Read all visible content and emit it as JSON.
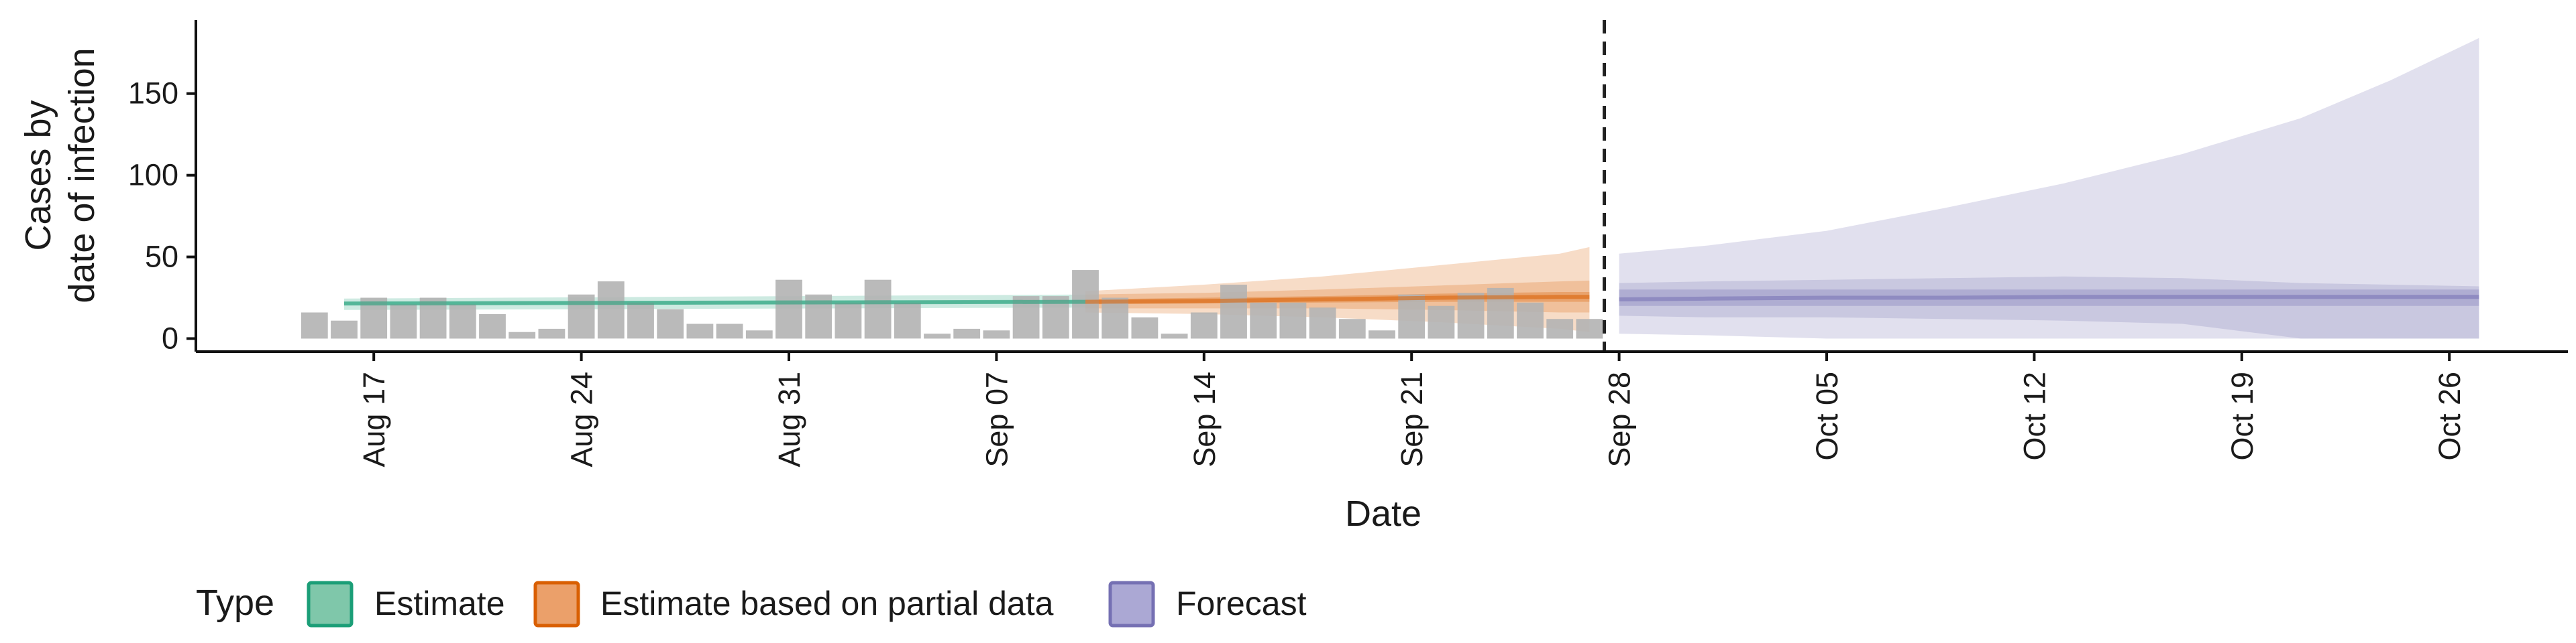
{
  "chart_data": {
    "type": "area",
    "title": "",
    "xlabel": "Date",
    "ylabel_lines": [
      "Cases by",
      "date of infection"
    ],
    "x_range": [
      "2020-08-11",
      "2020-10-30"
    ],
    "ylim": [
      -8,
      195
    ],
    "y_ticks": [
      0,
      50,
      100,
      150
    ],
    "x_ticks": [
      {
        "date": "2020-08-17",
        "label": "Aug 17"
      },
      {
        "date": "2020-08-24",
        "label": "Aug 24"
      },
      {
        "date": "2020-08-31",
        "label": "Aug 31"
      },
      {
        "date": "2020-09-07",
        "label": "Sep 07"
      },
      {
        "date": "2020-09-14",
        "label": "Sep 14"
      },
      {
        "date": "2020-09-21",
        "label": "Sep 21"
      },
      {
        "date": "2020-09-28",
        "label": "Sep 28"
      },
      {
        "date": "2020-10-05",
        "label": "Oct 05"
      },
      {
        "date": "2020-10-12",
        "label": "Oct 12"
      },
      {
        "date": "2020-10-19",
        "label": "Oct 19"
      },
      {
        "date": "2020-10-26",
        "label": "Oct 26"
      }
    ],
    "reported_cases": {
      "dates": [
        "2020-08-15",
        "2020-08-16",
        "2020-08-17",
        "2020-08-18",
        "2020-08-19",
        "2020-08-20",
        "2020-08-21",
        "2020-08-22",
        "2020-08-23",
        "2020-08-24",
        "2020-08-25",
        "2020-08-26",
        "2020-08-27",
        "2020-08-28",
        "2020-08-29",
        "2020-08-30",
        "2020-08-31",
        "2020-09-01",
        "2020-09-02",
        "2020-09-03",
        "2020-09-04",
        "2020-09-05",
        "2020-09-06",
        "2020-09-07",
        "2020-09-08",
        "2020-09-09",
        "2020-09-10",
        "2020-09-11",
        "2020-09-12",
        "2020-09-13",
        "2020-09-14",
        "2020-09-15",
        "2020-09-16",
        "2020-09-17",
        "2020-09-18",
        "2020-09-19",
        "2020-09-20",
        "2020-09-21",
        "2020-09-22",
        "2020-09-23",
        "2020-09-24",
        "2020-09-25",
        "2020-09-26",
        "2020-09-27"
      ],
      "values": [
        16,
        11,
        25,
        21,
        25,
        21,
        15,
        4,
        6,
        27,
        35,
        22,
        18,
        9,
        9,
        5,
        36,
        27,
        22,
        36,
        22,
        3,
        6,
        5,
        26,
        26,
        42,
        25,
        13,
        3,
        16,
        33,
        22,
        22,
        19,
        12,
        5,
        27,
        20,
        28,
        31,
        22,
        12,
        12
      ]
    },
    "separator_date": "2020-09-27",
    "legend": {
      "title": "Type",
      "position": "bottom",
      "entries": [
        {
          "label": "Estimate",
          "fill": "#7fc7aa",
          "stroke": "#1b9e77"
        },
        {
          "label": "Estimate based on partial data",
          "fill": "#eba06a",
          "stroke": "#d95f02"
        },
        {
          "label": "Forecast",
          "fill": "#aba8d4",
          "stroke": "#7570b3"
        }
      ]
    },
    "series": [
      {
        "name": "Estimate",
        "color": "#1b9e77",
        "dates": [
          "2020-08-16",
          "2020-09-10"
        ],
        "median": [
          21.5,
          22.5
        ],
        "lower_20": [
          20.5,
          21.5
        ],
        "upper_20": [
          22.5,
          23.5
        ],
        "lower_90": [
          17.5,
          19.0
        ],
        "upper_90": [
          24.5,
          27.0
        ]
      },
      {
        "name": "Estimate based on partial data",
        "color": "#d95f02",
        "dates": [
          "2020-09-10",
          "2020-09-14",
          "2020-09-18",
          "2020-09-22",
          "2020-09-26",
          "2020-09-27"
        ],
        "median": [
          22.5,
          23.0,
          24.0,
          25.0,
          25.5,
          25.5
        ],
        "lower_20": [
          21.0,
          21.5,
          22.0,
          22.5,
          22.5,
          22.5
        ],
        "upper_20": [
          24.0,
          25.0,
          26.0,
          27.5,
          28.5,
          28.5
        ],
        "lower_50": [
          18.5,
          18.5,
          18.5,
          17.5,
          16.0,
          16.0
        ],
        "upper_50": [
          27.0,
          28.0,
          30.0,
          32.5,
          35.0,
          35.5
        ],
        "lower_90": [
          16.0,
          15.0,
          13.0,
          10.0,
          6.0,
          4.0
        ],
        "upper_90": [
          29.0,
          33.0,
          38.0,
          45.0,
          52.0,
          56.0
        ]
      },
      {
        "name": "Forecast",
        "color": "#7570b3",
        "dates": [
          "2020-09-28",
          "2020-10-01",
          "2020-10-05",
          "2020-10-09",
          "2020-10-13",
          "2020-10-17",
          "2020-10-21",
          "2020-10-24",
          "2020-10-27"
        ],
        "median": [
          24.0,
          24.5,
          25.0,
          25.0,
          25.5,
          25.5,
          25.5,
          25.5,
          25.5
        ],
        "lower_20": [
          20.0,
          20.0,
          20.0,
          20.0,
          20.0,
          20.0,
          20.0,
          20.0,
          20.0
        ],
        "upper_20": [
          30.0,
          30.0,
          30.0,
          30.0,
          30.0,
          30.0,
          30.0,
          30.0,
          30.0
        ],
        "lower_50": [
          14.0,
          13.0,
          13.0,
          12.0,
          11.0,
          9.0,
          0,
          0,
          0
        ],
        "upper_50": [
          34.0,
          35.0,
          36.0,
          37.0,
          38.0,
          37.0,
          34.0,
          33.0,
          32.0
        ],
        "lower_90": [
          3.0,
          2.0,
          0,
          0,
          0,
          0,
          0,
          0,
          0
        ],
        "upper_90": [
          52.0,
          57.0,
          66.0,
          80.0,
          95.0,
          113.0,
          135.0,
          158.0,
          184.0
        ]
      }
    ]
  }
}
